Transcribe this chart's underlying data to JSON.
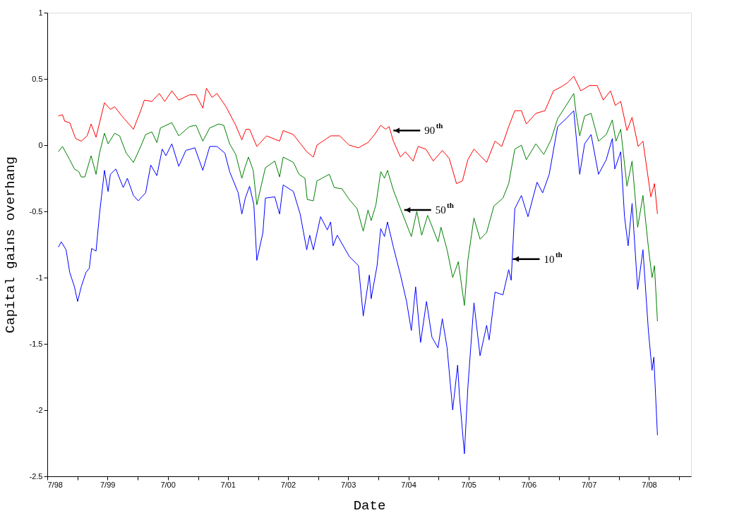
{
  "chart_data": {
    "type": "line",
    "xlabel": "Date",
    "ylabel": "Capital gains overhang",
    "xlim": [
      "1998-07-01",
      "2009-03-13"
    ],
    "ylim": [
      -2.5,
      1
    ],
    "xticks": [
      {
        "value": "1998-07",
        "label": "7/98"
      },
      {
        "value": "1999-01",
        "label": null
      },
      {
        "value": "1999-07",
        "label": "7/99"
      },
      {
        "value": "2000-01",
        "label": null
      },
      {
        "value": "2000-07",
        "label": "7/00"
      },
      {
        "value": "2001-01",
        "label": null
      },
      {
        "value": "2001-07",
        "label": "7/01"
      },
      {
        "value": "2002-01",
        "label": null
      },
      {
        "value": "2002-07",
        "label": "7/02"
      },
      {
        "value": "2003-01",
        "label": null
      },
      {
        "value": "2003-07",
        "label": "7/03"
      },
      {
        "value": "2004-01",
        "label": null
      },
      {
        "value": "2004-07",
        "label": "7/04"
      },
      {
        "value": "2005-01",
        "label": null
      },
      {
        "value": "2005-07",
        "label": "7/05"
      },
      {
        "value": "2006-01",
        "label": null
      },
      {
        "value": "2006-07",
        "label": "7/06"
      },
      {
        "value": "2007-01",
        "label": null
      },
      {
        "value": "2007-07",
        "label": "7/07"
      },
      {
        "value": "2008-01",
        "label": null
      },
      {
        "value": "2008-07",
        "label": "7/08"
      },
      {
        "value": "2009-01",
        "label": null
      }
    ],
    "yticks": [
      -2.5,
      -2,
      -1.5,
      -1,
      -0.5,
      0,
      0.5,
      1
    ],
    "grid": false,
    "legend": false,
    "marker": "none",
    "line_style": "solid",
    "annotations": [
      {
        "text": "90$^{th}$",
        "x": "2004-04-01",
        "y": 0.11
      },
      {
        "text": "50$^{th}$",
        "x": "2004-06-06",
        "y": -0.49
      },
      {
        "text": "10$^{th}$",
        "x": "2006-03-27",
        "y": -0.86
      }
    ],
    "series": [
      {
        "color": "#ff0000",
        "x": [
          "1998-09-06",
          "1998-10-01",
          "1998-10-15",
          "1998-11-14",
          "1998-12-20",
          "1999-01-23",
          "1999-02-28",
          "1999-03-24",
          "1999-04-23",
          "1999-06-13",
          "1999-07-19",
          "1999-08-14",
          "1999-09-27",
          "1999-12-06",
          "2000-01-19",
          "2000-02-10",
          "2000-03-27",
          "2000-05-11",
          "2000-06-13",
          "2000-07-26",
          "2000-09-06",
          "2000-11-10",
          "2000-12-20",
          "2001-01-30",
          "2001-02-21",
          "2001-03-27",
          "2001-04-26",
          "2001-06-20",
          "2001-08-18",
          "2001-09-24",
          "2001-10-19",
          "2001-11-10",
          "2001-12-24",
          "2002-02-21",
          "2002-05-11",
          "2002-06-02",
          "2002-08-03",
          "2002-10-23",
          "2002-12-02",
          "2002-12-24",
          "2003-03-17",
          "2003-05-11",
          "2003-07-08",
          "2003-09-02",
          "2003-10-30",
          "2003-12-09",
          "2004-01-15",
          "2004-02-14",
          "2004-03-06",
          "2004-04-01",
          "2004-05-14",
          "2004-06-13",
          "2004-07-30",
          "2004-08-29",
          "2004-10-15",
          "2004-11-29",
          "2005-01-23",
          "2005-03-06",
          "2005-04-19",
          "2005-05-25",
          "2005-06-27",
          "2005-08-03",
          "2005-10-19",
          "2005-12-09",
          "2006-01-19",
          "2006-03-02",
          "2006-04-08",
          "2006-05-18",
          "2006-06-17",
          "2006-08-14",
          "2006-10-08",
          "2006-11-29",
          "2007-01-15",
          "2007-02-21",
          "2007-04-01",
          "2007-05-14",
          "2007-07-05",
          "2007-08-21",
          "2007-09-27",
          "2007-11-10",
          "2007-12-09",
          "2008-01-11",
          "2008-02-18",
          "2008-03-20",
          "2008-04-26",
          "2008-05-25",
          "2008-07-12",
          "2008-08-03",
          "2008-08-21"
        ],
        "values": [
          0.22,
          0.23,
          0.18,
          0.17,
          0.05,
          0.03,
          0.07,
          0.16,
          0.06,
          0.32,
          0.27,
          0.29,
          0.22,
          0.12,
          0.26,
          0.34,
          0.33,
          0.39,
          0.33,
          0.41,
          0.34,
          0.38,
          0.38,
          0.28,
          0.43,
          0.36,
          0.39,
          0.29,
          0.15,
          0.04,
          0.12,
          0.12,
          -0.01,
          0.07,
          0.03,
          0.11,
          0.08,
          -0.05,
          -0.09,
          0.0,
          0.07,
          0.07,
          0.0,
          -0.02,
          0.02,
          0.08,
          0.15,
          0.12,
          0.14,
          0.03,
          -0.09,
          -0.05,
          -0.12,
          -0.01,
          -0.03,
          -0.12,
          -0.04,
          -0.1,
          -0.29,
          -0.27,
          -0.11,
          -0.03,
          -0.13,
          0.03,
          -0.01,
          0.14,
          0.26,
          0.26,
          0.16,
          0.24,
          0.26,
          0.41,
          0.44,
          0.47,
          0.52,
          0.41,
          0.45,
          0.45,
          0.34,
          0.41,
          0.3,
          0.33,
          0.11,
          0.21,
          -0.01,
          0.03,
          -0.39,
          -0.29,
          -0.52
        ]
      },
      {
        "color": "#008000",
        "x": [
          "1998-09-06",
          "1998-10-01",
          "1998-10-23",
          "1998-11-14",
          "1998-12-13",
          "1999-01-08",
          "1999-01-23",
          "1999-02-14",
          "1999-03-24",
          "1999-04-23",
          "1999-05-14",
          "1999-06-13",
          "1999-07-05",
          "1999-08-14",
          "1999-09-13",
          "1999-10-23",
          "1999-12-06",
          "2000-01-19",
          "2000-02-18",
          "2000-03-27",
          "2000-04-26",
          "2000-05-18",
          "2000-07-26",
          "2000-09-06",
          "2000-11-10",
          "2000-12-20",
          "2001-01-30",
          "2001-03-13",
          "2001-05-07",
          "2001-06-06",
          "2001-07-12",
          "2001-08-18",
          "2001-09-24",
          "2001-10-15",
          "2001-11-03",
          "2001-12-02",
          "2001-12-24",
          "2002-02-14",
          "2002-04-12",
          "2002-05-11",
          "2002-06-02",
          "2002-08-03",
          "2002-09-06",
          "2002-10-12",
          "2002-10-26",
          "2002-12-02",
          "2002-12-24",
          "2003-03-09",
          "2003-04-08",
          "2003-05-25",
          "2003-07-08",
          "2003-08-25",
          "2003-10-01",
          "2003-10-30",
          "2003-11-18",
          "2003-12-17",
          "2004-01-15",
          "2004-02-07",
          "2004-02-25",
          "2004-04-01",
          "2004-05-14",
          "2004-07-19",
          "2004-08-21",
          "2004-09-20",
          "2004-10-26",
          "2004-12-28",
          "2005-01-15",
          "2005-02-21",
          "2005-03-27",
          "2005-04-30",
          "2005-06-06",
          "2005-06-27",
          "2005-08-03",
          "2005-09-09",
          "2005-10-19",
          "2005-12-02",
          "2006-01-26",
          "2006-03-02",
          "2006-04-08",
          "2006-05-18",
          "2006-06-17",
          "2006-08-14",
          "2006-10-01",
          "2006-11-14",
          "2006-12-24",
          "2007-02-14",
          "2007-04-01",
          "2007-04-15",
          "2007-05-07",
          "2007-06-06",
          "2007-07-15",
          "2007-08-29",
          "2007-10-15",
          "2007-11-21",
          "2007-12-13",
          "2008-01-11",
          "2008-02-18",
          "2008-03-20",
          "2008-04-23",
          "2008-05-25",
          "2008-06-27",
          "2008-07-19",
          "2008-08-03",
          "2008-08-21"
        ],
        "values": [
          -0.05,
          -0.01,
          -0.06,
          -0.11,
          -0.18,
          -0.2,
          -0.24,
          -0.24,
          -0.08,
          -0.22,
          -0.06,
          0.09,
          0.01,
          0.09,
          0.07,
          -0.06,
          -0.13,
          -0.01,
          0.08,
          0.1,
          0.02,
          0.13,
          0.17,
          0.07,
          0.14,
          0.15,
          0.03,
          0.13,
          0.16,
          0.15,
          0.01,
          -0.07,
          -0.25,
          -0.16,
          -0.09,
          -0.19,
          -0.45,
          -0.17,
          -0.12,
          -0.24,
          -0.09,
          -0.13,
          -0.22,
          -0.25,
          -0.41,
          -0.42,
          -0.27,
          -0.22,
          -0.32,
          -0.33,
          -0.41,
          -0.48,
          -0.65,
          -0.49,
          -0.57,
          -0.45,
          -0.2,
          -0.25,
          -0.19,
          -0.34,
          -0.48,
          -0.69,
          -0.5,
          -0.68,
          -0.53,
          -0.73,
          -0.62,
          -0.79,
          -1.0,
          -0.88,
          -1.21,
          -0.87,
          -0.55,
          -0.71,
          -0.66,
          -0.46,
          -0.4,
          -0.29,
          -0.03,
          0.0,
          -0.11,
          0.01,
          -0.07,
          0.04,
          0.2,
          0.3,
          0.39,
          0.24,
          0.07,
          0.22,
          0.24,
          0.03,
          0.08,
          0.19,
          0.03,
          0.12,
          -0.31,
          -0.12,
          -0.62,
          -0.38,
          -0.77,
          -1.0,
          -0.91,
          -1.33
        ]
      },
      {
        "color": "#0000ff",
        "x": [
          "1998-09-06",
          "1998-09-24",
          "1998-10-23",
          "1998-11-14",
          "1998-12-13",
          "1999-01-01",
          "1999-01-23",
          "1999-02-21",
          "1999-03-13",
          "1999-03-27",
          "1999-04-23",
          "1999-05-14",
          "1999-06-13",
          "1999-07-05",
          "1999-07-19",
          "1999-08-21",
          "1999-10-05",
          "1999-10-30",
          "1999-12-06",
          "2000-01-04",
          "2000-02-18",
          "2000-03-20",
          "2000-04-26",
          "2000-05-29",
          "2000-06-20",
          "2000-07-26",
          "2000-09-06",
          "2000-10-19",
          "2000-12-13",
          "2001-01-30",
          "2001-03-13",
          "2001-04-26",
          "2001-06-13",
          "2001-07-12",
          "2001-09-02",
          "2001-09-24",
          "2001-10-15",
          "2001-11-10",
          "2001-12-06",
          "2001-12-24",
          "2002-01-30",
          "2002-02-14",
          "2002-04-12",
          "2002-05-11",
          "2002-06-02",
          "2002-08-03",
          "2002-09-13",
          "2002-10-23",
          "2002-11-10",
          "2002-12-02",
          "2003-01-15",
          "2003-02-25",
          "2003-03-17",
          "2003-04-01",
          "2003-04-26",
          "2003-07-08",
          "2003-09-02",
          "2003-10-01",
          "2003-11-07",
          "2003-11-18",
          "2003-12-24",
          "2004-01-15",
          "2004-02-07",
          "2004-02-25",
          "2004-04-01",
          "2004-05-14",
          "2004-06-20",
          "2004-07-19",
          "2004-08-14",
          "2004-09-13",
          "2004-10-19",
          "2004-11-21",
          "2004-12-28",
          "2005-01-23",
          "2005-02-21",
          "2005-03-27",
          "2005-04-26",
          "2005-05-07",
          "2005-06-06",
          "2005-06-27",
          "2005-08-03",
          "2005-09-09",
          "2005-10-19",
          "2005-11-03",
          "2005-12-09",
          "2006-01-26",
          "2006-03-02",
          "2006-03-17",
          "2006-04-08",
          "2006-05-18",
          "2006-06-27",
          "2006-08-21",
          "2006-09-24",
          "2006-11-03",
          "2006-12-24",
          "2007-02-14",
          "2007-04-01",
          "2007-05-07",
          "2007-06-06",
          "2007-07-15",
          "2007-08-29",
          "2007-10-15",
          "2007-11-21",
          "2007-12-06",
          "2008-01-11",
          "2008-02-03",
          "2008-02-25",
          "2008-03-20",
          "2008-04-23",
          "2008-05-25",
          "2008-06-27",
          "2008-07-19",
          "2008-07-30",
          "2008-08-21"
        ],
        "values": [
          -0.77,
          -0.73,
          -0.79,
          -0.96,
          -1.07,
          -1.18,
          -1.07,
          -0.96,
          -0.93,
          -0.78,
          -0.8,
          -0.52,
          -0.19,
          -0.35,
          -0.22,
          -0.18,
          -0.32,
          -0.25,
          -0.38,
          -0.42,
          -0.36,
          -0.15,
          -0.23,
          -0.03,
          -0.08,
          0.01,
          -0.16,
          -0.04,
          -0.02,
          -0.19,
          -0.01,
          -0.01,
          -0.06,
          -0.2,
          -0.36,
          -0.52,
          -0.4,
          -0.31,
          -0.45,
          -0.87,
          -0.66,
          -0.4,
          -0.39,
          -0.52,
          -0.3,
          -0.35,
          -0.52,
          -0.79,
          -0.68,
          -0.79,
          -0.54,
          -0.64,
          -0.58,
          -0.76,
          -0.68,
          -0.84,
          -0.91,
          -1.29,
          -0.98,
          -1.16,
          -0.91,
          -0.63,
          -0.69,
          -0.58,
          -0.77,
          -0.98,
          -1.18,
          -1.4,
          -1.07,
          -1.49,
          -1.18,
          -1.45,
          -1.53,
          -1.31,
          -1.53,
          -2.0,
          -1.66,
          -1.89,
          -2.33,
          -1.83,
          -1.19,
          -1.59,
          -1.36,
          -1.47,
          -1.11,
          -1.13,
          -0.94,
          -1.02,
          -0.48,
          -0.38,
          -0.54,
          -0.28,
          -0.36,
          -0.22,
          0.14,
          0.2,
          0.26,
          -0.22,
          0.01,
          0.08,
          -0.22,
          -0.11,
          0.05,
          -0.18,
          -0.05,
          -0.54,
          -0.76,
          -0.44,
          -1.09,
          -0.79,
          -1.4,
          -1.7,
          -1.6,
          -2.19
        ]
      }
    ]
  }
}
